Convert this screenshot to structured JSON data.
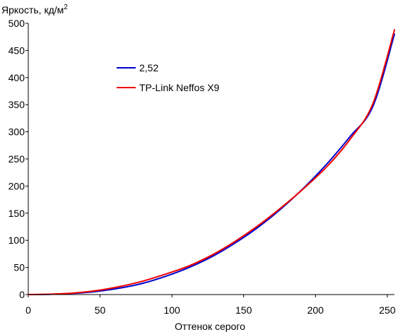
{
  "chart_data": {
    "type": "line",
    "title": "",
    "ylabel": "Яркость, кд/м",
    "ylabel_sup": "2",
    "xlabel": "Оттенок серого",
    "xlim": [
      0,
      255
    ],
    "ylim": [
      0,
      500
    ],
    "x_ticks": [
      0,
      50,
      100,
      150,
      200,
      250
    ],
    "y_ticks": [
      0,
      50,
      100,
      150,
      200,
      250,
      300,
      350,
      400,
      450,
      500
    ],
    "grid": false,
    "legend_position": "upper-left",
    "series": [
      {
        "name": "2,52",
        "color": "#0000cc",
        "x": [
          0,
          16,
          32,
          48,
          64,
          80,
          96,
          112,
          128,
          144,
          160,
          176,
          192,
          208,
          224,
          240,
          255
        ],
        "y": [
          0,
          0.5,
          2.2,
          5.9,
          12,
          21,
          34,
          50,
          70,
          95,
          124,
          158,
          197,
          241,
          291,
          347,
          480
        ]
      },
      {
        "name": "TP-Link Neffos X9",
        "color": "#ee0000",
        "x": [
          0,
          16,
          32,
          48,
          64,
          80,
          96,
          112,
          128,
          144,
          160,
          176,
          192,
          208,
          224,
          240,
          255
        ],
        "y": [
          0,
          0.8,
          3.0,
          7.5,
          15,
          25,
          38,
          53,
          73,
          98,
          127,
          160,
          196,
          236,
          286,
          352,
          488
        ]
      }
    ]
  }
}
